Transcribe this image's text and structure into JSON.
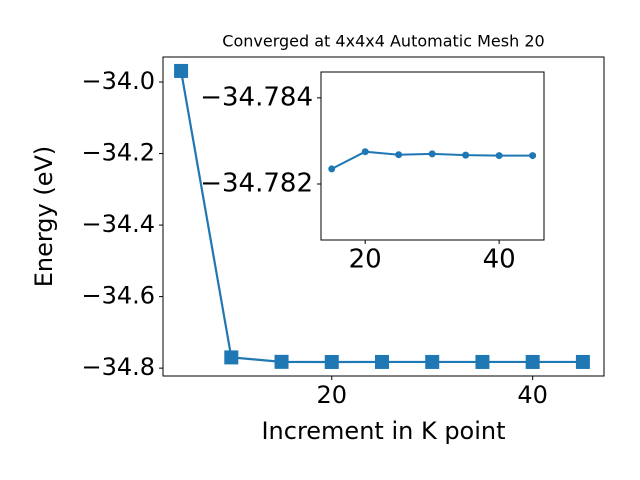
{
  "chart_data": [
    {
      "type": "line",
      "title": "Converged at 4x4x4 Automatic Mesh 20",
      "x_label": "Increment in K point",
      "y_label": "Energy (eV)",
      "x": [
        5,
        10,
        15,
        20,
        25,
        30,
        35,
        40,
        45
      ],
      "series": [
        {
          "name": "Energy",
          "color": "#1f77b4",
          "marker": "square",
          "values": [
            -33.969,
            -34.77,
            -34.7824,
            -34.7828,
            -34.7827,
            -34.7827,
            -34.7827,
            -34.7827,
            -34.7827
          ]
        }
      ],
      "xlim": [
        3.2,
        47.1
      ],
      "ylim": [
        -34.822,
        -33.93
      ],
      "xticks": [
        20,
        40
      ],
      "yticks": [
        {
          "value": -34.8,
          "label": "−34.8"
        },
        {
          "value": -34.6,
          "label": "−34.6"
        },
        {
          "value": -34.4,
          "label": "−34.4"
        },
        {
          "value": -34.2,
          "label": "−34.2"
        },
        {
          "value": -34.0,
          "label": "−34.0"
        }
      ]
    },
    {
      "type": "line",
      "x": [
        15,
        20,
        25,
        30,
        35,
        40,
        45
      ],
      "series": [
        {
          "name": "Energy",
          "color": "#1f77b4",
          "marker": "circle",
          "values": [
            -34.78235,
            -34.78275,
            -34.78268,
            -34.7827,
            -34.78267,
            -34.78266,
            -34.78266
          ]
        }
      ],
      "xlim": [
        13.4,
        46.7
      ],
      "ylim": [
        -34.7807,
        -34.7846
      ],
      "xticks": [
        20,
        40
      ],
      "yticks": [
        {
          "value": -34.784,
          "label": "−34.784"
        },
        {
          "value": -34.782,
          "label": "−34.782"
        }
      ]
    }
  ]
}
